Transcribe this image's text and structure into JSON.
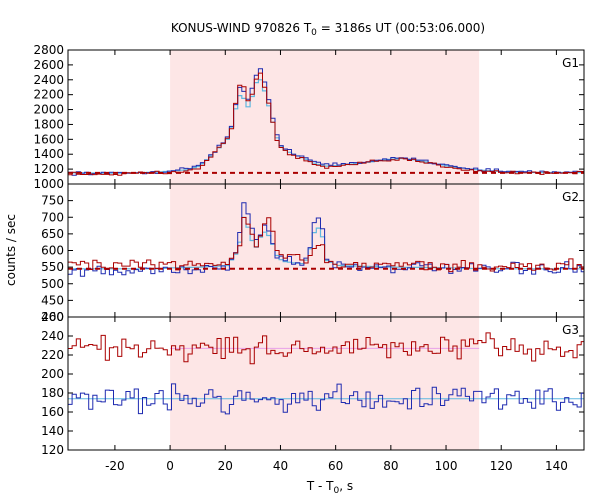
{
  "chart_data": {
    "type": "line",
    "title": "KONUS-WIND 970826 T",
    "title_sub": "0",
    "title_rest": " = 3186s UT (00:53:06.000)",
    "xlabel": "T - T",
    "xlabel_sub": "0",
    "xlabel_rest": ", s",
    "ylabel": "counts / sec",
    "xlim": [
      -37,
      150
    ],
    "xticks": [
      -20,
      0,
      20,
      40,
      60,
      80,
      100,
      120,
      140
    ],
    "interval_highlight": {
      "from": 0,
      "to": 112,
      "color": "#fde6e6"
    },
    "colors": {
      "red": "#aa0000",
      "blue": "#1f2bb0",
      "cyan": "#5fb8e0",
      "pink": "#e8a0e8",
      "fill": "#fde6e6"
    },
    "panels": [
      {
        "name": "G1",
        "ylim": [
          1000,
          2800
        ],
        "yticks": [
          1000,
          1200,
          1400,
          1600,
          1800,
          2000,
          2200,
          2400,
          2600,
          2800
        ],
        "background_level": 1150,
        "background_color": "red",
        "key_points": {
          "red": [
            [
              -37,
              1140
            ],
            [
              -20,
              1130
            ],
            [
              -5,
              1150
            ],
            [
              0,
              1160
            ],
            [
              5,
              1180
            ],
            [
              10,
              1230
            ],
            [
              15,
              1400
            ],
            [
              20,
              1600
            ],
            [
              22,
              1800
            ],
            [
              24,
              2350
            ],
            [
              26,
              2300
            ],
            [
              28,
              2050
            ],
            [
              30,
              2400
            ],
            [
              32,
              2480
            ],
            [
              34,
              2250
            ],
            [
              36,
              1900
            ],
            [
              38,
              1600
            ],
            [
              40,
              1450
            ],
            [
              44,
              1380
            ],
            [
              48,
              1320
            ],
            [
              52,
              1250
            ],
            [
              56,
              1220
            ],
            [
              60,
              1240
            ],
            [
              66,
              1260
            ],
            [
              72,
              1290
            ],
            [
              78,
              1320
            ],
            [
              84,
              1330
            ],
            [
              90,
              1300
            ],
            [
              96,
              1260
            ],
            [
              100,
              1230
            ],
            [
              106,
              1200
            ],
            [
              112,
              1180
            ],
            [
              120,
              1160
            ],
            [
              130,
              1150
            ],
            [
              140,
              1150
            ],
            [
              150,
              1150
            ]
          ],
          "blue": [
            [
              -37,
              1150
            ],
            [
              -20,
              1140
            ],
            [
              -5,
              1160
            ],
            [
              0,
              1180
            ],
            [
              5,
              1200
            ],
            [
              10,
              1260
            ],
            [
              15,
              1420
            ],
            [
              20,
              1620
            ],
            [
              22,
              1850
            ],
            [
              24,
              2300
            ],
            [
              26,
              2250
            ],
            [
              28,
              2100
            ],
            [
              30,
              2450
            ],
            [
              32,
              2530
            ],
            [
              34,
              2300
            ],
            [
              36,
              1950
            ],
            [
              38,
              1650
            ],
            [
              40,
              1500
            ],
            [
              44,
              1420
            ],
            [
              48,
              1360
            ],
            [
              52,
              1290
            ],
            [
              56,
              1260
            ],
            [
              60,
              1260
            ],
            [
              66,
              1280
            ],
            [
              72,
              1300
            ],
            [
              78,
              1340
            ],
            [
              84,
              1360
            ],
            [
              90,
              1320
            ],
            [
              96,
              1280
            ],
            [
              100,
              1250
            ],
            [
              106,
              1220
            ],
            [
              112,
              1190
            ],
            [
              120,
              1170
            ],
            [
              130,
              1160
            ],
            [
              140,
              1160
            ],
            [
              150,
              1160
            ]
          ],
          "cyan": [
            [
              -37,
              1150
            ],
            [
              -20,
              1145
            ],
            [
              -5,
              1160
            ],
            [
              0,
              1175
            ],
            [
              5,
              1190
            ],
            [
              10,
              1240
            ],
            [
              15,
              1410
            ],
            [
              20,
              1600
            ],
            [
              22,
              1820
            ],
            [
              24,
              2200
            ],
            [
              26,
              2150
            ],
            [
              28,
              2000
            ],
            [
              30,
              2350
            ],
            [
              32,
              2400
            ],
            [
              34,
              2200
            ],
            [
              36,
              1900
            ],
            [
              38,
              1620
            ],
            [
              40,
              1470
            ],
            [
              44,
              1400
            ],
            [
              48,
              1340
            ],
            [
              52,
              1270
            ],
            [
              56,
              1240
            ],
            [
              60,
              1250
            ],
            [
              66,
              1270
            ],
            [
              72,
              1295
            ],
            [
              78,
              1330
            ],
            [
              84,
              1345
            ],
            [
              90,
              1310
            ],
            [
              96,
              1270
            ],
            [
              100,
              1240
            ],
            [
              106,
              1210
            ],
            [
              112,
              1185
            ],
            [
              120,
              1165
            ],
            [
              130,
              1155
            ],
            [
              140,
              1155
            ],
            [
              150,
              1155
            ]
          ]
        },
        "noise": 18
      },
      {
        "name": "G2",
        "ylim": [
          400,
          800
        ],
        "yticks": [
          400,
          450,
          500,
          550,
          600,
          650,
          700,
          750
        ],
        "background_level": 545,
        "background_color": "red",
        "key_points": {
          "red": [
            [
              -37,
              560
            ],
            [
              -20,
              550
            ],
            [
              -5,
              560
            ],
            [
              0,
              555
            ],
            [
              10,
              555
            ],
            [
              20,
              560
            ],
            [
              24,
              610
            ],
            [
              26,
              700
            ],
            [
              28,
              680
            ],
            [
              30,
              600
            ],
            [
              32,
              650
            ],
            [
              34,
              690
            ],
            [
              36,
              680
            ],
            [
              38,
              600
            ],
            [
              40,
              585
            ],
            [
              44,
              580
            ],
            [
              48,
              575
            ],
            [
              50,
              590
            ],
            [
              52,
              620
            ],
            [
              54,
              605
            ],
            [
              56,
              570
            ],
            [
              60,
              560
            ],
            [
              80,
              560
            ],
            [
              100,
              555
            ],
            [
              112,
              550
            ],
            [
              130,
              550
            ],
            [
              150,
              560
            ]
          ],
          "blue": [
            [
              -37,
              540
            ],
            [
              -20,
              535
            ],
            [
              -5,
              540
            ],
            [
              0,
              545
            ],
            [
              10,
              545
            ],
            [
              20,
              550
            ],
            [
              24,
              620
            ],
            [
              26,
              750
            ],
            [
              28,
              690
            ],
            [
              30,
              620
            ],
            [
              32,
              660
            ],
            [
              34,
              680
            ],
            [
              36,
              640
            ],
            [
              38,
              590
            ],
            [
              40,
              570
            ],
            [
              44,
              565
            ],
            [
              48,
              560
            ],
            [
              50,
              620
            ],
            [
              52,
              700
            ],
            [
              54,
              690
            ],
            [
              56,
              575
            ],
            [
              60,
              555
            ],
            [
              80,
              550
            ],
            [
              100,
              545
            ],
            [
              112,
              540
            ],
            [
              130,
              545
            ],
            [
              150,
              545
            ]
          ],
          "cyan": [
            [
              -37,
              545
            ],
            [
              -20,
              545
            ],
            [
              -5,
              545
            ],
            [
              0,
              548
            ],
            [
              10,
              550
            ],
            [
              20,
              555
            ],
            [
              24,
              600
            ],
            [
              26,
              700
            ],
            [
              28,
              660
            ],
            [
              30,
              600
            ],
            [
              32,
              640
            ],
            [
              34,
              660
            ],
            [
              36,
              630
            ],
            [
              38,
              585
            ],
            [
              40,
              568
            ],
            [
              44,
              563
            ],
            [
              48,
              560
            ],
            [
              50,
              605
            ],
            [
              52,
              670
            ],
            [
              54,
              665
            ],
            [
              56,
              570
            ],
            [
              60,
              555
            ],
            [
              80,
              550
            ],
            [
              100,
              548
            ],
            [
              112,
              545
            ],
            [
              130,
              545
            ],
            [
              150,
              545
            ]
          ]
        },
        "noise": 14
      },
      {
        "name": "G3",
        "ylim": [
          120,
          260
        ],
        "yticks": [
          120,
          140,
          160,
          180,
          200,
          220,
          240,
          260
        ],
        "levels": {
          "red": 227,
          "blue": 174
        },
        "noise": 11
      }
    ]
  }
}
